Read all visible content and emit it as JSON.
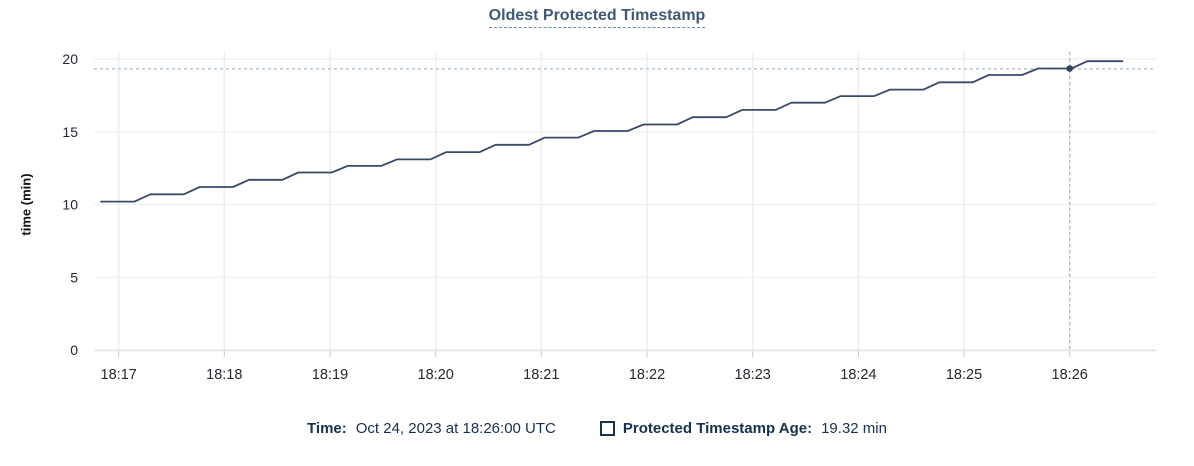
{
  "title": {
    "text": "Oldest Protected Timestamp"
  },
  "chart_data": {
    "type": "line",
    "title": "Oldest Protected Timestamp",
    "xlabel": "",
    "ylabel": "time (min)",
    "ylim": [
      0,
      20
    ],
    "yticks": [
      0,
      5,
      10,
      15,
      20
    ],
    "x_unit": "seconds relative to 18:17:00",
    "x_domain": [
      -14,
      589
    ],
    "xticks": [
      {
        "t": 0,
        "label": "18:17"
      },
      {
        "t": 60,
        "label": "18:18"
      },
      {
        "t": 120,
        "label": "18:19"
      },
      {
        "t": 180,
        "label": "18:20"
      },
      {
        "t": 240,
        "label": "18:21"
      },
      {
        "t": 300,
        "label": "18:22"
      },
      {
        "t": 360,
        "label": "18:23"
      },
      {
        "t": 420,
        "label": "18:24"
      },
      {
        "t": 480,
        "label": "18:25"
      },
      {
        "t": 540,
        "label": "18:26"
      }
    ],
    "grid": true,
    "legend_position": "bottom",
    "series": [
      {
        "name": "Protected Timestamp Age",
        "color": "#394a66",
        "points": [
          [
            -10,
            10.2
          ],
          [
            9,
            10.2
          ],
          [
            18,
            10.7
          ],
          [
            37,
            10.7
          ],
          [
            46,
            11.2
          ],
          [
            65,
            11.2
          ],
          [
            74,
            11.7
          ],
          [
            93,
            11.7
          ],
          [
            102,
            12.2
          ],
          [
            121,
            12.2
          ],
          [
            130,
            12.65
          ],
          [
            149,
            12.65
          ],
          [
            158,
            13.1
          ],
          [
            177,
            13.1
          ],
          [
            186,
            13.6
          ],
          [
            205,
            13.6
          ],
          [
            214,
            14.1
          ],
          [
            233,
            14.1
          ],
          [
            242,
            14.6
          ],
          [
            261,
            14.6
          ],
          [
            270,
            15.05
          ],
          [
            289,
            15.05
          ],
          [
            298,
            15.5
          ],
          [
            317,
            15.5
          ],
          [
            326,
            16.0
          ],
          [
            345,
            16.0
          ],
          [
            354,
            16.5
          ],
          [
            373,
            16.5
          ],
          [
            382,
            17.0
          ],
          [
            401,
            17.0
          ],
          [
            410,
            17.45
          ],
          [
            429,
            17.45
          ],
          [
            438,
            17.9
          ],
          [
            457,
            17.9
          ],
          [
            466,
            18.4
          ],
          [
            485,
            18.4
          ],
          [
            494,
            18.9
          ],
          [
            513,
            18.9
          ],
          [
            522,
            19.35
          ],
          [
            541,
            19.35
          ],
          [
            550,
            19.85
          ],
          [
            570,
            19.85
          ]
        ]
      }
    ],
    "crosshair": {
      "t": 540,
      "value": 19.32,
      "time_label": "18:26"
    },
    "marker": {
      "t": 540
    }
  },
  "legend": {
    "time_label": "Time:",
    "time_value": "Oct 24, 2023 at 18:26:00 UTC",
    "series_label": "Protected Timestamp Age:",
    "series_value": "19.32 min"
  },
  "colors": {
    "title_text": "#3f5876",
    "title_underline": "#6e89a8",
    "legend_text": "#16304d",
    "line": "#394a66",
    "marker": "#36425c",
    "crosshair": "#a9bcc8",
    "gridline": "#efefef",
    "axis_line": "#e2e2e2",
    "tick_mark": "#c6c6c6",
    "axis_tick_text": "#24292f"
  }
}
